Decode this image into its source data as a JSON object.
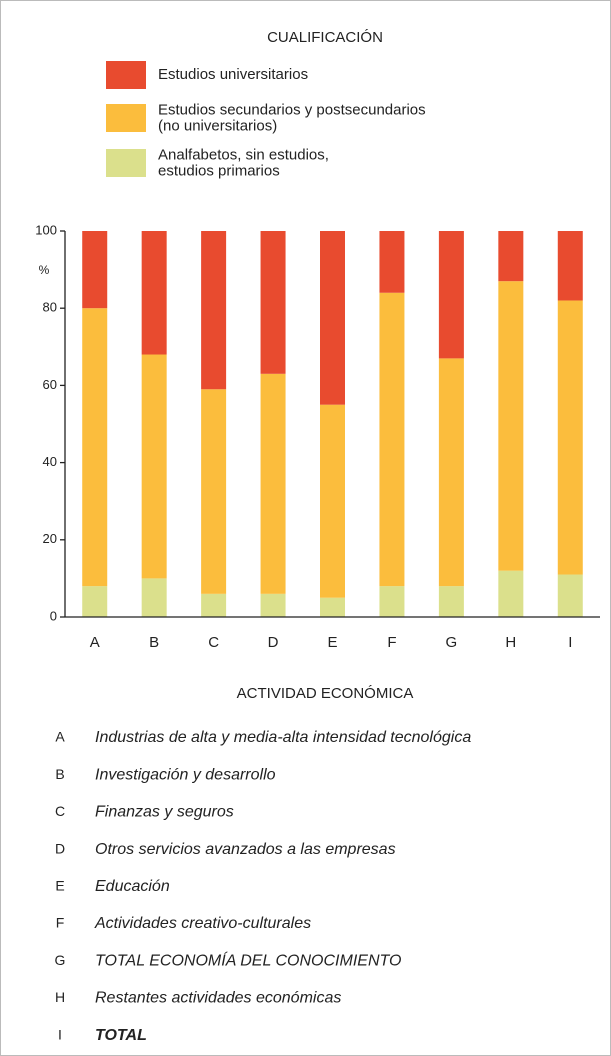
{
  "chart_data": {
    "type": "stacked_bar",
    "title": "CUALIFICACIÓN",
    "y_unit": "%",
    "x_label": "ACTIVIDAD ECONÓMICA",
    "categories": [
      "A",
      "B",
      "C",
      "D",
      "E",
      "F",
      "G",
      "H",
      "I"
    ],
    "series": [
      {
        "name": "Analfabetos, sin estudios,\nestudios primarios",
        "color": "#dbe08c",
        "values": [
          8,
          10,
          6,
          6,
          5,
          8,
          8,
          12,
          11
        ]
      },
      {
        "name": "Estudios secundarios y postsecundarios\n(no universitarios)",
        "color": "#fbbd3d",
        "values": [
          72,
          58,
          53,
          57,
          50,
          76,
          59,
          75,
          71
        ]
      },
      {
        "name": "Estudios universitarios",
        "color": "#e84b2f",
        "values": [
          20,
          32,
          41,
          37,
          45,
          16,
          33,
          13,
          18
        ]
      }
    ],
    "ylim": [
      0,
      100
    ],
    "yticks": [
      0,
      20,
      40,
      60,
      80,
      100
    ],
    "grid": false,
    "key": [
      {
        "letter": "A",
        "description": "Industrias de alta y media-alta intensidad tecnológica"
      },
      {
        "letter": "B",
        "description": "Investigación y desarrollo"
      },
      {
        "letter": "C",
        "description": "Finanzas y seguros"
      },
      {
        "letter": "D",
        "description": "Otros servicios avanzados a las empresas"
      },
      {
        "letter": "E",
        "description": "Educación"
      },
      {
        "letter": "F",
        "description": "Actividades creativo-culturales"
      },
      {
        "letter": "G",
        "description": "TOTAL ECONOMÍA DEL CONOCIMIENTO"
      },
      {
        "letter": "H",
        "description": "Restantes actividades económicas"
      },
      {
        "letter": "I",
        "description": "TOTAL",
        "bold": true
      }
    ]
  }
}
